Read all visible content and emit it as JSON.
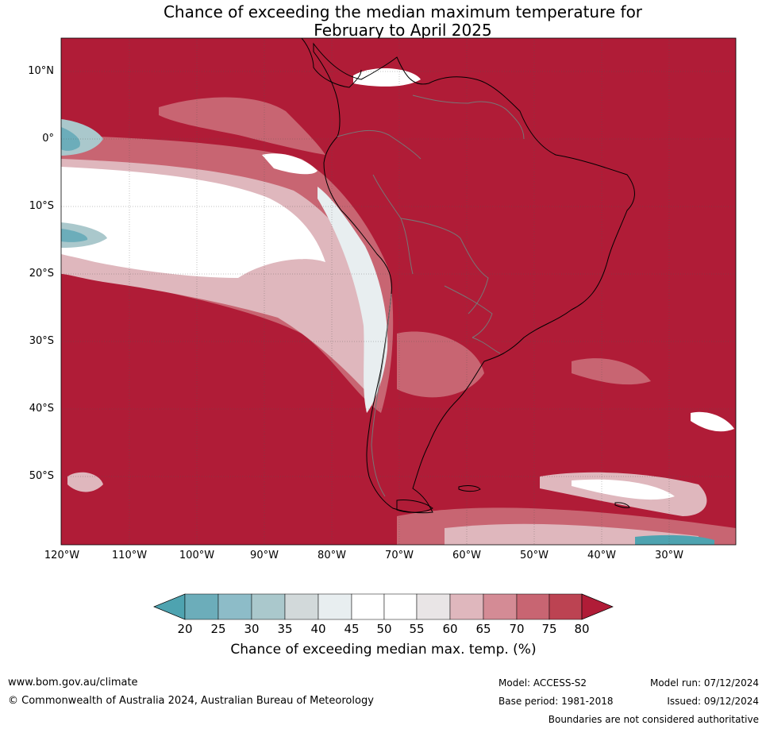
{
  "title_line1": "Chance of exceeding the median maximum temperature for",
  "title_line2": "February to April 2025",
  "map": {
    "background_color": "#b01c37",
    "lat_labels": [
      "10°N",
      "0°",
      "10°S",
      "20°S",
      "30°S",
      "40°S",
      "50°S"
    ],
    "lon_labels": [
      "120°W",
      "110°W",
      "100°W",
      "90°W",
      "80°W",
      "70°W",
      "60°W",
      "50°W",
      "40°W",
      "30°W"
    ]
  },
  "legend": {
    "title": "Chance of exceeding median max. temp. (%)",
    "ticks": [
      "20",
      "25",
      "30",
      "35",
      "40",
      "45",
      "50",
      "55",
      "60",
      "65",
      "70",
      "75",
      "80"
    ],
    "colors": [
      "#4ea3b0",
      "#6cadba",
      "#8dbcc8",
      "#aac8cc",
      "#d2d9da",
      "#e8eef0",
      "#ffffff",
      "#ffffff",
      "#e9e5e6",
      "#dfb7bd",
      "#d48b95",
      "#c86572",
      "#bc4352",
      "#b01c37"
    ]
  },
  "footer": {
    "website": "www.bom.gov.au/climate",
    "copyright": "© Commonwealth of Australia 2024, Australian Bureau of Meteorology",
    "model": "Model: ACCESS-S2",
    "base_period": "Base period: 1981-2018",
    "model_run": "Model run: 07/12/2024",
    "issued": "Issued: 09/12/2024",
    "disclaimer": "Boundaries are not considered authoritative"
  }
}
